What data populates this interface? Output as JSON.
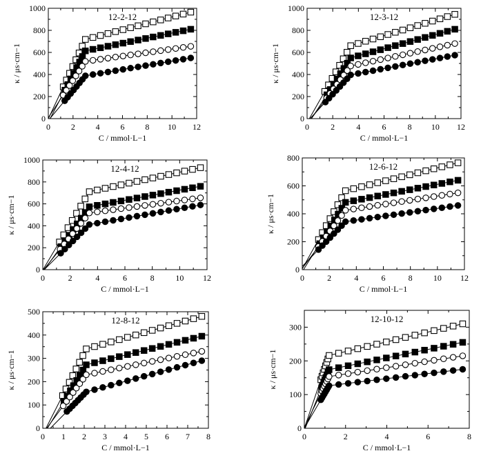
{
  "chart_data": [
    {
      "type": "scatter",
      "title": "12-2-12",
      "xlabel": "C / mmol·L−1",
      "ylabel": "κ / μs·cm−1",
      "xlim": [
        0,
        12
      ],
      "ylim": [
        0,
        1000
      ],
      "xticks": [
        0,
        2,
        4,
        6,
        8,
        10,
        12
      ],
      "yticks": [
        0,
        200,
        400,
        600,
        800,
        1000
      ],
      "cmc": 3.0,
      "series": [
        {
          "marker": "open-square",
          "slope1": 240,
          "slope2": 29,
          "y_end": 965
        },
        {
          "marker": "filled-square",
          "slope1": 215,
          "slope2": 23,
          "y_end": 810
        },
        {
          "marker": "open-circle",
          "slope1": 170,
          "slope2": 16,
          "y_end": 655
        },
        {
          "marker": "filled-circle",
          "slope1": 135,
          "slope2": 19,
          "y_end": 550
        }
      ]
    },
    {
      "type": "scatter",
      "title": "12-3-12",
      "xlabel": "C / mmol·L−1",
      "ylabel": "κ / μs·cm−1",
      "xlim": [
        0,
        12
      ],
      "ylim": [
        0,
        1000
      ],
      "xticks": [
        0,
        2,
        4,
        6,
        8,
        10,
        12
      ],
      "yticks": [
        0,
        200,
        400,
        600,
        800,
        1000
      ],
      "cmc": 3.4,
      "series": [
        {
          "marker": "open-square",
          "slope1": 205,
          "slope2": 35,
          "y_end": 945
        },
        {
          "marker": "filled-square",
          "slope1": 180,
          "slope2": 32,
          "y_end": 810
        },
        {
          "marker": "open-circle",
          "slope1": 155,
          "slope2": 25,
          "y_end": 680
        },
        {
          "marker": "filled-circle",
          "slope1": 125,
          "slope2": 22,
          "y_end": 575
        }
      ]
    },
    {
      "type": "scatter",
      "title": "12-4-12",
      "xlabel": "C / mmol·L−1",
      "ylabel": "κ / μs·cm−1",
      "xlim": [
        0,
        12
      ],
      "ylim": [
        0,
        1000
      ],
      "xticks": [
        0,
        2,
        4,
        6,
        8,
        10,
        12
      ],
      "yticks": [
        0,
        200,
        400,
        600,
        800,
        1000
      ],
      "cmc": 3.4,
      "series": [
        {
          "marker": "open-square",
          "slope1": 210,
          "slope2": 27,
          "y_end": 930
        },
        {
          "marker": "filled-square",
          "slope1": 175,
          "slope2": 23,
          "y_end": 760
        },
        {
          "marker": "open-circle",
          "slope1": 155,
          "slope2": 17,
          "y_end": 655
        },
        {
          "marker": "filled-circle",
          "slope1": 125,
          "slope2": 22,
          "y_end": 590
        }
      ]
    },
    {
      "type": "scatter",
      "title": "12-6-12",
      "xlabel": "C / mmol·L−1",
      "ylabel": "κ / μs·cm−1",
      "xlim": [
        0,
        12
      ],
      "ylim": [
        0,
        800
      ],
      "xticks": [
        0,
        2,
        4,
        6,
        8,
        10,
        12
      ],
      "yticks": [
        0,
        200,
        400,
        600,
        800
      ],
      "cmc": 3.2,
      "series": [
        {
          "marker": "open-square",
          "slope1": 175,
          "slope2": 24,
          "y_end": 765
        },
        {
          "marker": "filled-square",
          "slope1": 155,
          "slope2": 19,
          "y_end": 640
        },
        {
          "marker": "open-circle",
          "slope1": 130,
          "slope2": 15,
          "y_end": 550
        },
        {
          "marker": "filled-circle",
          "slope1": 100,
          "slope2": 14,
          "y_end": 460
        }
      ]
    },
    {
      "type": "scatter",
      "title": "12-8-12",
      "xlabel": "C / mmol·L−1",
      "ylabel": "κ / μs·cm−1",
      "xlim": [
        0,
        8
      ],
      "ylim": [
        0,
        500
      ],
      "xticks": [
        0,
        1,
        2,
        3,
        4,
        5,
        6,
        7,
        8
      ],
      "yticks": [
        0,
        100,
        200,
        300,
        400,
        500
      ],
      "cmc": 2.1,
      "series": [
        {
          "marker": "open-square",
          "slope1": 175,
          "slope2": 25,
          "y_end": 480
        },
        {
          "marker": "filled-square",
          "slope1": 145,
          "slope2": 22,
          "y_end": 395
        },
        {
          "marker": "open-circle",
          "slope1": 120,
          "slope2": 18,
          "y_end": 330
        },
        {
          "marker": "filled-circle",
          "slope1": 90,
          "slope2": 24,
          "y_end": 290
        }
      ]
    },
    {
      "type": "scatter",
      "title": "12-10-12",
      "xlabel": "C / mmol·L−1",
      "ylabel": "κ / μs·cm−1",
      "xlim": [
        0,
        8
      ],
      "ylim": [
        0,
        350
      ],
      "xticks": [
        0,
        2,
        4,
        6,
        8
      ],
      "yticks": [
        0,
        100,
        200,
        300
      ],
      "cmc": 1.2,
      "series": [
        {
          "marker": "open-square",
          "slope1": 180,
          "slope2": 14.5,
          "y_end": 310
        },
        {
          "marker": "filled-square",
          "slope1": 150,
          "slope2": 12.5,
          "y_end": 255
        },
        {
          "marker": "open-circle",
          "slope1": 125,
          "slope2": 9.5,
          "y_end": 215
        },
        {
          "marker": "filled-circle",
          "slope1": 105,
          "slope2": 7.5,
          "y_end": 175
        }
      ]
    }
  ]
}
